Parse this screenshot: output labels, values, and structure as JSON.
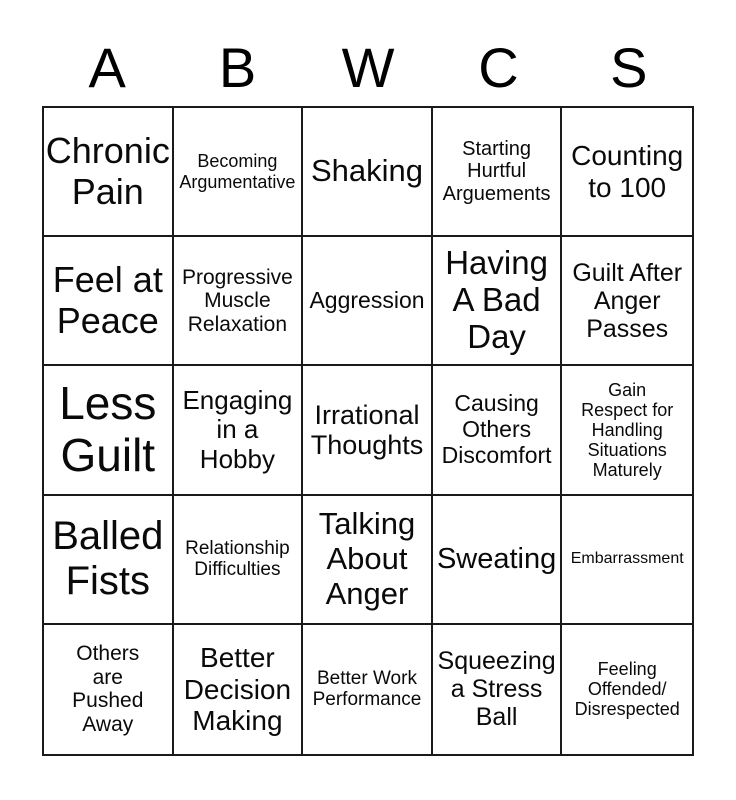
{
  "header": {
    "letters": [
      "A",
      "B",
      "W",
      "C",
      "S"
    ]
  },
  "grid": {
    "cells": [
      {
        "text": "Chronic\nPain"
      },
      {
        "text": "Becoming\nArgumentative"
      },
      {
        "text": "Shaking"
      },
      {
        "text": "Starting\nHurtful\nArguements"
      },
      {
        "text": "Counting\nto 100"
      },
      {
        "text": "Feel at\nPeace"
      },
      {
        "text": "Progressive\nMuscle\nRelaxation"
      },
      {
        "text": "Aggression"
      },
      {
        "text": "Having\nA Bad\nDay"
      },
      {
        "text": "Guilt After\nAnger\nPasses"
      },
      {
        "text": "Less\nGuilt"
      },
      {
        "text": "Engaging\nin a\nHobby"
      },
      {
        "text": "Irrational\nThoughts"
      },
      {
        "text": "Causing\nOthers\nDiscomfort"
      },
      {
        "text": "Gain\nRespect for\nHandling\nSituations\nMaturely"
      },
      {
        "text": "Balled\nFists"
      },
      {
        "text": "Relationship\nDifficulties"
      },
      {
        "text": "Talking\nAbout\nAnger"
      },
      {
        "text": "Sweating"
      },
      {
        "text": "Embarrassment"
      },
      {
        "text": "Others\nare\nPushed\nAway"
      },
      {
        "text": "Better\nDecision\nMaking"
      },
      {
        "text": "Better Work\nPerformance"
      },
      {
        "text": "Squeezing\na Stress\nBall"
      },
      {
        "text": "Feeling\nOffended/\nDisrespected"
      }
    ]
  },
  "colors": {
    "background": "#ffffff",
    "text": "#000000",
    "grid_border": "#1a1a1a"
  }
}
